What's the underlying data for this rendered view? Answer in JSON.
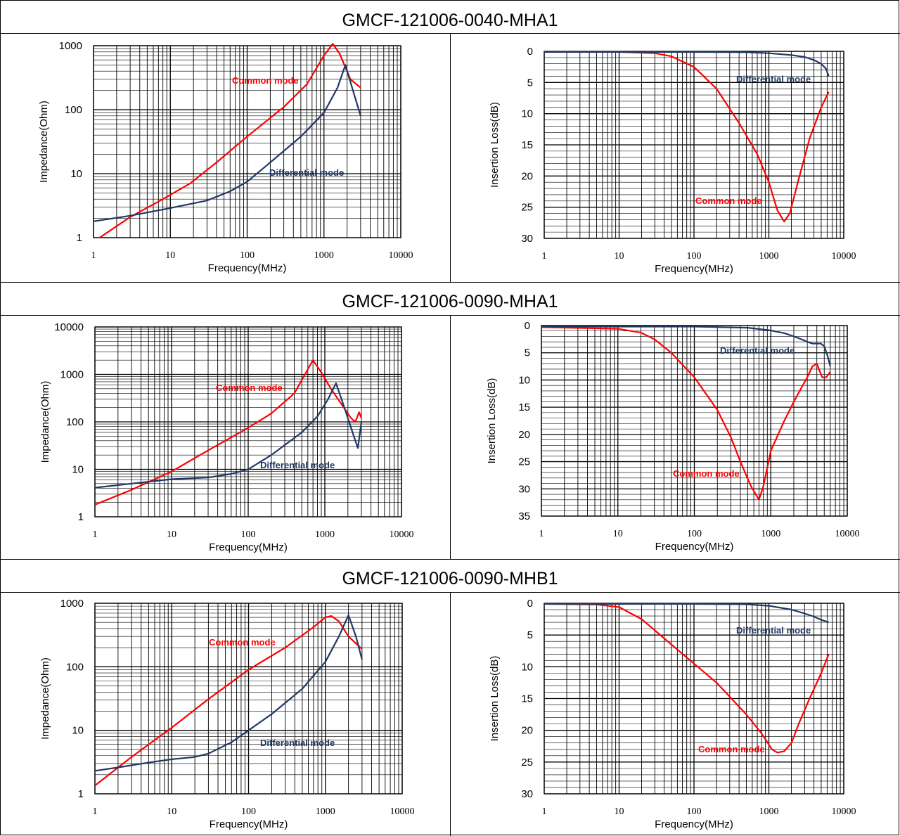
{
  "colors": {
    "common": "#ff0000",
    "differential": "#1f3864",
    "grid": "#000000"
  },
  "rows": [
    {
      "part_number": "GMCF-121006-0040-MHA1"
    },
    {
      "part_number": "GMCF-121006-0090-MHA1"
    },
    {
      "part_number": "GMCF-121006-0090-MHB1"
    }
  ],
  "chart_data": [
    {
      "type": "line",
      "scale_x": "log",
      "scale_y": "log",
      "xlabel": "Frequency(MHz)",
      "ylabel": "Impedance(Ohm)",
      "xlim": [
        1,
        10000
      ],
      "ylim": [
        1,
        1000
      ],
      "xticks": [
        "1",
        "10",
        "100",
        "1000",
        "10000"
      ],
      "yticks": [
        "1",
        "10",
        "100",
        "1000"
      ],
      "annotations": [
        "Common mode",
        "Differential mode"
      ],
      "series": [
        {
          "name": "Common mode",
          "color": "#ff0000",
          "x": [
            1.2,
            3,
            8,
            18,
            40,
            100,
            300,
            600,
            1000,
            1300,
            1600,
            2200,
            3000
          ],
          "y": [
            1,
            2.1,
            4,
            7,
            15,
            38,
            110,
            250,
            700,
            1070,
            750,
            300,
            220
          ]
        },
        {
          "name": "Differential mode",
          "color": "#1f3864",
          "x": [
            1,
            3,
            10,
            30,
            60,
            100,
            200,
            500,
            1000,
            1500,
            1900,
            2300,
            3000
          ],
          "y": [
            1.8,
            2.2,
            2.9,
            3.8,
            5.3,
            7.5,
            15,
            38,
            90,
            220,
            500,
            230,
            80
          ]
        }
      ]
    },
    {
      "type": "line",
      "scale_x": "log",
      "y_inverted": true,
      "xlabel": "Frequency(MHz)",
      "ylabel": "Insertion Loss(dB)",
      "xlim": [
        1,
        10000
      ],
      "ylim": [
        0,
        30
      ],
      "xticks": [
        "1",
        "10",
        "100",
        "1000",
        "10000"
      ],
      "yticks": [
        "0",
        "5",
        "10",
        "15",
        "20",
        "25",
        "30"
      ],
      "annotations": [
        "Differential mode",
        "Common mode"
      ],
      "series": [
        {
          "name": "Common mode",
          "color": "#ff0000",
          "x": [
            1,
            10,
            30,
            50,
            100,
            200,
            400,
            700,
            1000,
            1300,
            1600,
            1900,
            2500,
            3500,
            5000,
            6300
          ],
          "y": [
            0.1,
            0.1,
            0.3,
            0.8,
            2.5,
            6,
            11.5,
            16.5,
            21,
            25.5,
            27.3,
            26,
            20.5,
            14,
            9,
            6.5
          ]
        },
        {
          "name": "Differential mode",
          "color": "#1f3864",
          "x": [
            1,
            100,
            500,
            1000,
            2000,
            3000,
            4000,
            5000,
            5800,
            6300
          ],
          "y": [
            0.1,
            0.1,
            0.15,
            0.3,
            0.6,
            0.9,
            1.4,
            2,
            2.8,
            4
          ]
        }
      ]
    },
    {
      "type": "line",
      "scale_x": "log",
      "scale_y": "log",
      "xlabel": "Frequency(MHz)",
      "ylabel": "Impedance(Ohm)",
      "xlim": [
        1,
        10000
      ],
      "ylim": [
        1,
        10000
      ],
      "xticks": [
        "1",
        "10",
        "100",
        "1000",
        "10000"
      ],
      "yticks": [
        "1",
        "10",
        "100",
        "1000",
        "10000"
      ],
      "annotations": [
        "Common mode",
        "Differential mode"
      ],
      "series": [
        {
          "name": "Common mode",
          "color": "#ff0000",
          "x": [
            1,
            3,
            10,
            30,
            100,
            200,
            400,
            550,
            700,
            900,
            1200,
            1700,
            2200,
            2500,
            2800,
            3000
          ],
          "y": [
            1.8,
            3.7,
            9,
            25,
            75,
            150,
            400,
            1000,
            2000,
            1100,
            500,
            220,
            120,
            100,
            160,
            120
          ]
        },
        {
          "name": "Differential mode",
          "color": "#1f3864",
          "x": [
            1,
            3,
            10,
            30,
            60,
            100,
            200,
            500,
            800,
            1100,
            1400,
            1800,
            2300,
            2700,
            3000
          ],
          "y": [
            4.1,
            5,
            6.2,
            6.7,
            8,
            10,
            20,
            60,
            130,
            300,
            650,
            200,
            60,
            28,
            100
          ]
        }
      ]
    },
    {
      "type": "line",
      "scale_x": "log",
      "y_inverted": true,
      "xlabel": "Frequency(MHz)",
      "ylabel": "Insertion Loss(dB)",
      "xlim": [
        1,
        10000
      ],
      "ylim": [
        0,
        35
      ],
      "xticks": [
        "1",
        "10",
        "100",
        "1000",
        "10000"
      ],
      "yticks": [
        "0",
        "5",
        "10",
        "15",
        "20",
        "25",
        "30",
        "35"
      ],
      "annotations": [
        "Differential mode",
        "Common mode"
      ],
      "series": [
        {
          "name": "Common mode",
          "color": "#ff0000",
          "x": [
            1,
            10,
            20,
            30,
            50,
            100,
            200,
            300,
            400,
            550,
            700,
            800,
            1000,
            1500,
            2000,
            2500,
            3000,
            3500,
            4000,
            4700,
            5300,
            6000
          ],
          "y": [
            0.3,
            0.6,
            1.3,
            2.5,
            5,
            9.5,
            15.5,
            20.5,
            25,
            29.5,
            32,
            29.5,
            23,
            17.5,
            14,
            11.5,
            9.5,
            7.5,
            7,
            9.5,
            9.5,
            8.5
          ]
        },
        {
          "name": "Differential mode",
          "color": "#1f3864",
          "x": [
            1,
            100,
            500,
            1000,
            1500,
            2000,
            2500,
            3000,
            3500,
            4500,
            5000,
            5500,
            6000
          ],
          "y": [
            0.2,
            0.2,
            0.4,
            0.9,
            1.4,
            2,
            2.5,
            3,
            3.3,
            3.3,
            3.8,
            5.5,
            7.5
          ]
        }
      ]
    },
    {
      "type": "line",
      "scale_x": "log",
      "scale_y": "log",
      "xlabel": "Frequency(MHz)",
      "ylabel": "Impedance(Ohm)",
      "xlim": [
        1,
        10000
      ],
      "ylim": [
        1,
        1000
      ],
      "xticks": [
        "1",
        "10",
        "100",
        "1000",
        "10000"
      ],
      "yticks": [
        "1",
        "10",
        "100",
        "1000"
      ],
      "annotations": [
        "Common mode",
        "Differential mode"
      ],
      "series": [
        {
          "name": "Common mode",
          "color": "#ff0000",
          "x": [
            1,
            3,
            10,
            30,
            100,
            300,
            700,
            1000,
            1200,
            1500,
            2000,
            3000
          ],
          "y": [
            1.35,
            3.8,
            11,
            31,
            90,
            200,
            420,
            600,
            630,
            520,
            300,
            190
          ]
        },
        {
          "name": "Differential mode",
          "color": "#1f3864",
          "x": [
            1,
            2,
            5,
            10,
            20,
            30,
            60,
            100,
            200,
            500,
            1000,
            1500,
            2000,
            2500,
            3000
          ],
          "y": [
            2.3,
            2.6,
            3.1,
            3.5,
            3.8,
            4.3,
            6.5,
            10,
            18,
            45,
            120,
            300,
            650,
            300,
            130
          ]
        }
      ]
    },
    {
      "type": "line",
      "scale_x": "log",
      "y_inverted": true,
      "xlabel": "Frequency(MHz)",
      "ylabel": "Insertion Loss(dB)",
      "xlim": [
        1,
        10000
      ],
      "ylim": [
        0,
        30
      ],
      "xticks": [
        "1",
        "10",
        "100",
        "1000",
        "10000"
      ],
      "yticks": [
        "0",
        "5",
        "10",
        "15",
        "20",
        "25",
        "30"
      ],
      "annotations": [
        "Differential mode",
        "Common mode"
      ],
      "series": [
        {
          "name": "Common mode",
          "color": "#ff0000",
          "x": [
            1,
            5,
            10,
            20,
            50,
            100,
            200,
            500,
            800,
            1100,
            1300,
            1600,
            2000,
            2500,
            3500,
            5000,
            6300
          ],
          "y": [
            0.1,
            0.2,
            0.6,
            2.5,
            6.5,
            9.5,
            12.5,
            17.5,
            20.5,
            23,
            23.5,
            23.3,
            22,
            19,
            15,
            11,
            8
          ]
        },
        {
          "name": "Differential mode",
          "color": "#1f3864",
          "x": [
            1,
            100,
            500,
            1000,
            2000,
            3000,
            4000,
            5000,
            6300
          ],
          "y": [
            0.1,
            0.1,
            0.15,
            0.4,
            1,
            1.6,
            2.1,
            2.6,
            3
          ]
        }
      ]
    }
  ]
}
